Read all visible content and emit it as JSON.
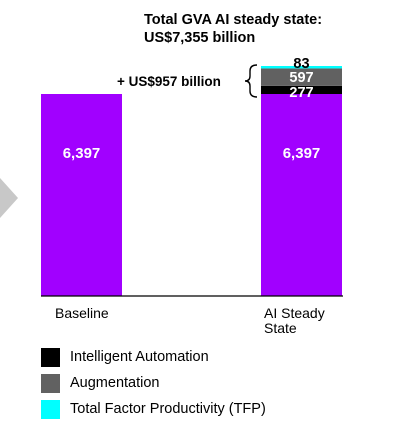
{
  "chart_data": {
    "type": "stacked-bar",
    "title_lines": [
      "Total GVA AI steady state:",
      "US$7,355 billion"
    ],
    "categories": [
      {
        "label_lines": [
          "Baseline"
        ]
      },
      {
        "label_lines": [
          "AI Steady",
          "State"
        ]
      }
    ],
    "series": [
      {
        "name": "",
        "color": "#a100ff",
        "values": [
          6397,
          6397
        ]
      },
      {
        "name": "Intelligent Automation",
        "color": "#000000",
        "values": [
          0,
          277
        ]
      },
      {
        "name": "Augmentation",
        "color": "#616161",
        "values": [
          0,
          597
        ]
      },
      {
        "name": "Total Factor Productivity (TFP)",
        "color": "#00ffff",
        "values": [
          0,
          83
        ]
      }
    ],
    "value_labels": {
      "base": [
        "6,397",
        "6,397"
      ],
      "increments": [
        "277",
        "597",
        "83"
      ]
    },
    "bracket_annotation": "+ US$957 billion",
    "legend_placement": "bottom-left",
    "grid": false,
    "colors": {
      "accent": "#a100ff",
      "arrow": "#c8c8c8"
    }
  }
}
